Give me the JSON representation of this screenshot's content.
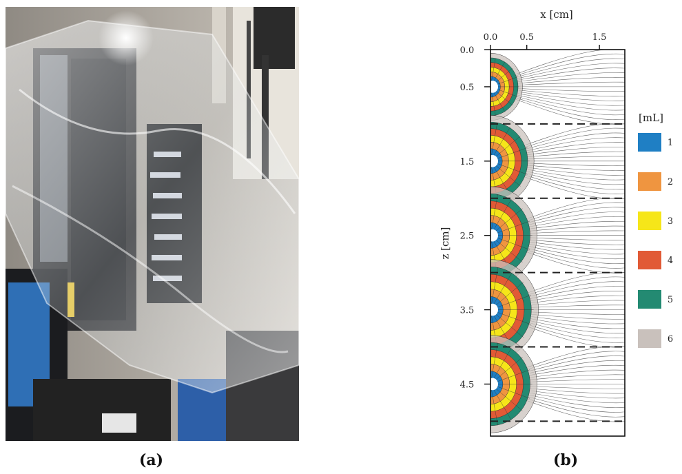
{
  "panels": {
    "a": {
      "label": "(a)"
    },
    "b": {
      "label": "(b)"
    }
  },
  "chart_data": {
    "type": "contour",
    "xlabel": "x [cm]",
    "ylabel": "z [cm]",
    "x_ticks": [
      "0.0",
      "0.5",
      "1.5"
    ],
    "x_tick_values": [
      0.0,
      0.5,
      1.5
    ],
    "z_ticks": [
      "0.0",
      "0.5",
      "1.5",
      "2.5",
      "3.5",
      "4.5"
    ],
    "z_tick_values": [
      0.0,
      0.5,
      1.5,
      2.5,
      3.5,
      4.5
    ],
    "xlim": [
      0.0,
      1.85
    ],
    "zlim": [
      0.0,
      5.2
    ],
    "legend_title": "[mL]",
    "legend": [
      {
        "label": "1",
        "color": "#1f7fc4"
      },
      {
        "label": "2",
        "color": "#ef9540"
      },
      {
        "label": "3",
        "color": "#f6e619"
      },
      {
        "label": "4",
        "color": "#e15a36"
      },
      {
        "label": "5",
        "color": "#238a72"
      },
      {
        "label": "6",
        "color": "#c9c1bc"
      }
    ],
    "layer_boundaries_z": [
      1.0,
      2.0,
      3.0,
      4.0,
      5.0
    ],
    "sources_z": [
      0.5,
      1.5,
      2.5,
      3.5,
      4.5
    ],
    "source_outer_extent_x": [
      0.44,
      0.6,
      0.64,
      0.66,
      0.64
    ]
  }
}
